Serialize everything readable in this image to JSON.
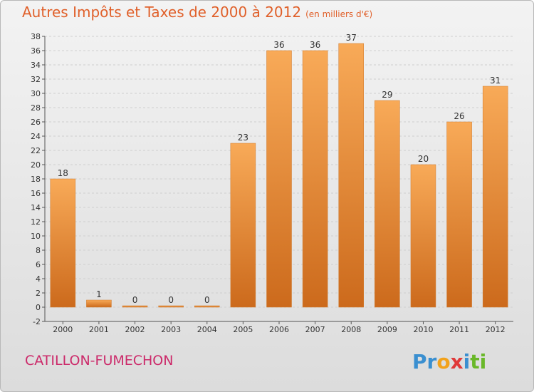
{
  "title": "Autres Impôts et Taxes de 2000 à 2012",
  "unit": "(en milliers d'€)",
  "commune": "CATILLON-FUMECHON",
  "brand": {
    "parts": [
      "Pr",
      "o",
      "x",
      "i",
      "ti"
    ],
    "colors": [
      "#3a8fd0",
      "#f2a21b",
      "#e03a3a",
      "#3a8fd0",
      "#6ab829"
    ]
  },
  "colors": {
    "bar_light": "#f8aa58",
    "bar_dark": "#cc6a1c",
    "axis": "#555555",
    "grid": "#cfcfcf",
    "title": "#e0602a",
    "commune": "#cc2a6a"
  },
  "chart_data": {
    "type": "bar",
    "title": "Autres Impôts et Taxes de 2000 à 2012",
    "subtitle": "(en milliers d'€)",
    "xlabel": "",
    "ylabel": "",
    "categories": [
      "2000",
      "2001",
      "2002",
      "2003",
      "2004",
      "2005",
      "2006",
      "2007",
      "2008",
      "2009",
      "2010",
      "2011",
      "2012"
    ],
    "values": [
      18,
      1,
      0,
      0,
      0,
      23,
      36,
      36,
      37,
      29,
      20,
      26,
      31
    ],
    "labels": [
      "18",
      "1",
      "0",
      "0",
      "0",
      "23",
      "36",
      "36",
      "37",
      "29",
      "20",
      "26",
      "31"
    ],
    "ylim": [
      -2,
      38
    ],
    "yticks": [
      "-2",
      "0",
      "2",
      "4",
      "6",
      "8",
      "10",
      "12",
      "14",
      "16",
      "18",
      "20",
      "22",
      "24",
      "26",
      "28",
      "30",
      "32",
      "34",
      "36",
      "38"
    ],
    "grid": true
  }
}
